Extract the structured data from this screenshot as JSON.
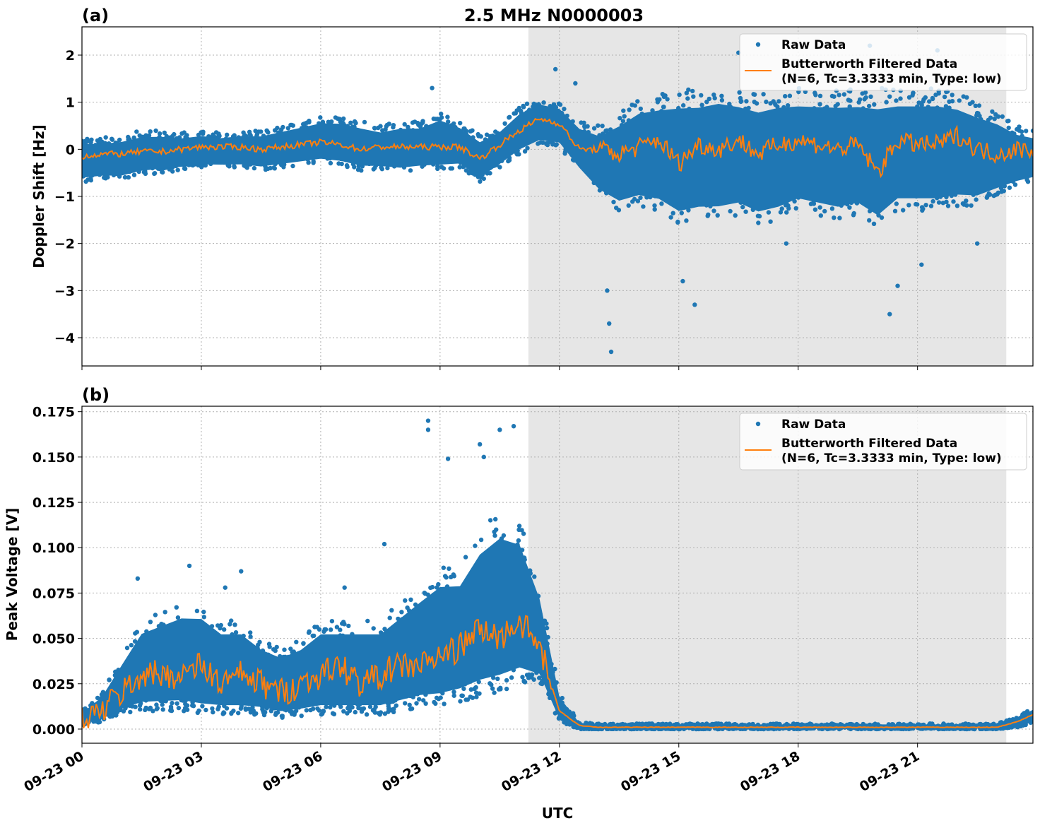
{
  "chart_data": [
    {
      "type": "scatter+line",
      "panel_label": "(a)",
      "title": "2.5 MHz N0000003",
      "ylabel": "Doppler Shift [Hz]",
      "xlabel": "",
      "xlim": [
        0,
        23.9
      ],
      "ylim": [
        -4.6,
        2.6
      ],
      "yticks": [
        -4,
        -3,
        -2,
        -1,
        0,
        1,
        2
      ],
      "ytick_labels": [
        "−4",
        "−3",
        "−2",
        "−1",
        "0",
        "1",
        "2"
      ],
      "shaded_region_hours": [
        11.22,
        23.23
      ],
      "grid": true,
      "legend": {
        "placement": "top-right",
        "entries": [
          "Raw Data",
          "Butterworth Filtered Data",
          "(N=6, Tc=3.3333 min, Type: low)"
        ]
      },
      "x_hours": [
        0,
        0.5,
        1,
        1.5,
        2,
        2.5,
        3,
        3.5,
        4,
        4.5,
        5,
        5.5,
        6,
        6.5,
        7,
        7.5,
        8,
        8.5,
        9,
        9.5,
        10,
        10.5,
        11,
        11.5,
        12,
        12.5,
        13,
        13.5,
        14,
        14.5,
        15,
        15.5,
        16,
        16.5,
        17,
        17.5,
        18,
        18.5,
        19,
        19.5,
        20,
        20.5,
        21,
        21.5,
        22,
        22.5,
        23,
        23.5,
        23.9
      ],
      "filtered": [
        -0.15,
        -0.1,
        -0.1,
        -0.05,
        -0.05,
        0,
        0.05,
        0.05,
        0.05,
        0,
        0.05,
        0.1,
        0.15,
        0.1,
        0,
        0.05,
        0.05,
        0.05,
        0.05,
        0.05,
        -0.2,
        0.1,
        0.4,
        0.65,
        0.55,
        0,
        0,
        -0.1,
        0.05,
        0.2,
        -0.3,
        0.1,
        0,
        0.2,
        -0.1,
        0.1,
        0.2,
        0.1,
        0,
        0.1,
        -0.5,
        0.2,
        0.1,
        0.1,
        0.3,
        0,
        -0.1,
        0,
        0
      ],
      "raw_lower": [
        -0.7,
        -0.65,
        -0.65,
        -0.55,
        -0.5,
        -0.45,
        -0.4,
        -0.4,
        -0.4,
        -0.45,
        -0.4,
        -0.35,
        -0.3,
        -0.35,
        -0.45,
        -0.45,
        -0.5,
        -0.45,
        -0.45,
        -0.4,
        -0.7,
        -0.4,
        -0.1,
        0.1,
        0.05,
        -0.5,
        -1.0,
        -1.3,
        -1.2,
        -1.3,
        -1.6,
        -1.5,
        -1.5,
        -1.4,
        -1.6,
        -1.5,
        -1.3,
        -1.4,
        -1.5,
        -1.4,
        -1.7,
        -1.3,
        -1.3,
        -1.3,
        -1.2,
        -1.2,
        -1.0,
        -0.8,
        -0.7
      ],
      "raw_upper": [
        0.25,
        0.25,
        0.3,
        0.4,
        0.4,
        0.35,
        0.4,
        0.35,
        0.4,
        0.4,
        0.5,
        0.6,
        0.7,
        0.7,
        0.6,
        0.5,
        0.6,
        0.6,
        0.8,
        0.6,
        0.3,
        0.5,
        0.9,
        1.1,
        1.0,
        0.6,
        0.5,
        0.8,
        1.1,
        1.2,
        1.3,
        1.3,
        1.4,
        1.3,
        1.2,
        1.3,
        1.3,
        1.3,
        1.3,
        1.3,
        1.3,
        1.3,
        1.3,
        1.3,
        1.2,
        1.0,
        0.8,
        0.5,
        0.4
      ],
      "raw_outliers": [
        [
          13.3,
          -4.3
        ],
        [
          13.25,
          -3.7
        ],
        [
          13.2,
          -3.0
        ],
        [
          15.1,
          -2.8
        ],
        [
          15.4,
          -3.3
        ],
        [
          20.3,
          -3.5
        ],
        [
          20.5,
          -2.9
        ],
        [
          8.8,
          1.3
        ],
        [
          16.5,
          2.05
        ],
        [
          19.8,
          2.2
        ],
        [
          21.5,
          2.1
        ],
        [
          11.9,
          1.7
        ],
        [
          12.4,
          1.4
        ],
        [
          17.7,
          -2.0
        ],
        [
          21.1,
          -2.45
        ],
        [
          22.5,
          -2.0
        ]
      ]
    },
    {
      "type": "scatter+line",
      "panel_label": "(b)",
      "ylabel": "Peak Voltage [V]",
      "xlabel": "UTC",
      "xlim": [
        0,
        23.9
      ],
      "ylim": [
        -0.0078,
        0.178
      ],
      "yticks": [
        0,
        0.025,
        0.05,
        0.075,
        0.1,
        0.125,
        0.15,
        0.175
      ],
      "ytick_labels": [
        "0.000",
        "0.025",
        "0.050",
        "0.075",
        "0.100",
        "0.125",
        "0.150",
        "0.175"
      ],
      "xticks": [
        0,
        3,
        6,
        9,
        12,
        15,
        18,
        21
      ],
      "xtick_labels": [
        "09-23 00",
        "09-23 03",
        "09-23 06",
        "09-23 09",
        "09-23 12",
        "09-23 15",
        "09-23 18",
        "09-23 21"
      ],
      "shaded_region_hours": [
        11.22,
        23.23
      ],
      "grid": true,
      "legend": {
        "placement": "top-right",
        "entries": [
          "Raw Data",
          "Butterworth Filtered Data",
          "(N=6, Tc=3.3333 min, Type: low)"
        ]
      },
      "x_hours": [
        0,
        0.5,
        1,
        1.5,
        2,
        2.5,
        3,
        3.5,
        4,
        4.5,
        5,
        5.5,
        6,
        6.5,
        7,
        7.5,
        8,
        8.5,
        9,
        9.5,
        10,
        10.5,
        11,
        11.5,
        12,
        12.5,
        13,
        13.5,
        14,
        14.5,
        15,
        15.5,
        16,
        16.5,
        17,
        17.5,
        18,
        18.5,
        19,
        19.5,
        20,
        20.5,
        21,
        21.5,
        22,
        22.5,
        23,
        23.5,
        23.9
      ],
      "filtered": [
        0.004,
        0.01,
        0.02,
        0.03,
        0.03,
        0.03,
        0.035,
        0.025,
        0.03,
        0.025,
        0.02,
        0.025,
        0.03,
        0.035,
        0.025,
        0.03,
        0.035,
        0.035,
        0.04,
        0.045,
        0.055,
        0.05,
        0.06,
        0.045,
        0.01,
        0.002,
        0.001,
        0.001,
        0.001,
        0.001,
        0.001,
        0.001,
        0.001,
        0.001,
        0.001,
        0.001,
        0.001,
        0.001,
        0.001,
        0.001,
        0.001,
        0.001,
        0.001,
        0.001,
        0.001,
        0.001,
        0.001,
        0.004,
        0.008
      ],
      "raw_lower": [
        0.002,
        0.004,
        0.008,
        0.01,
        0.01,
        0.01,
        0.008,
        0.008,
        0.008,
        0.008,
        0.006,
        0.007,
        0.008,
        0.008,
        0.008,
        0.008,
        0.01,
        0.012,
        0.012,
        0.015,
        0.018,
        0.02,
        0.025,
        0.025,
        0.004,
        0,
        0,
        0,
        0,
        0,
        0,
        0,
        0,
        0,
        0,
        0,
        0,
        0,
        0,
        0,
        0,
        0,
        0,
        0,
        0,
        0,
        0,
        0.001,
        0.003
      ],
      "raw_upper": [
        0.01,
        0.02,
        0.04,
        0.06,
        0.065,
        0.07,
        0.07,
        0.06,
        0.06,
        0.05,
        0.045,
        0.05,
        0.06,
        0.06,
        0.06,
        0.06,
        0.07,
        0.08,
        0.09,
        0.09,
        0.11,
        0.12,
        0.115,
        0.08,
        0.02,
        0.004,
        0.003,
        0.003,
        0.003,
        0.003,
        0.003,
        0.003,
        0.003,
        0.003,
        0.003,
        0.003,
        0.003,
        0.003,
        0.003,
        0.003,
        0.003,
        0.003,
        0.003,
        0.003,
        0.003,
        0.003,
        0.003,
        0.007,
        0.012
      ],
      "raw_outliers": [
        [
          8.7,
          0.17
        ],
        [
          8.7,
          0.165
        ],
        [
          9.2,
          0.149
        ],
        [
          10.0,
          0.157
        ],
        [
          10.1,
          0.15
        ],
        [
          10.5,
          0.165
        ],
        [
          10.85,
          0.167
        ],
        [
          1.4,
          0.083
        ],
        [
          2.7,
          0.09
        ],
        [
          4.0,
          0.087
        ],
        [
          7.6,
          0.102
        ],
        [
          6.6,
          0.078
        ],
        [
          3.6,
          0.078
        ]
      ]
    }
  ],
  "colors": {
    "raw": "#1f77b4",
    "filtered": "#ff7f0e",
    "shade": "#e6e6e6",
    "grid": "#b0b0b0"
  }
}
